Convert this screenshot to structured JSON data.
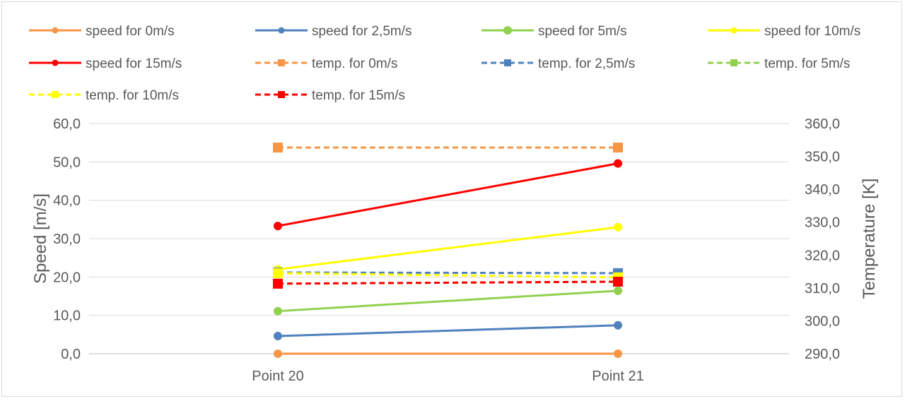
{
  "chart_data": {
    "type": "line",
    "categories": [
      "Point 20",
      "Point 21"
    ],
    "ylabel": "Speed [m/s]",
    "y2label": "Temperature [K]",
    "ylim": [
      0,
      60
    ],
    "y2lim": [
      290,
      360
    ],
    "yticks": [
      "0,0",
      "10,0",
      "20,0",
      "30,0",
      "40,0",
      "50,0",
      "60,0"
    ],
    "y2ticks": [
      "290,0",
      "300,0",
      "310,0",
      "320,0",
      "330,0",
      "340,0",
      "350,0",
      "360,0"
    ],
    "grid": true,
    "legend_position": "top",
    "series": [
      {
        "name": "speed for 0m/s",
        "axis": "left",
        "color": "#F79646",
        "style": "solid",
        "marker": "circle",
        "values": [
          0,
          0
        ]
      },
      {
        "name": "speed for 2,5m/s",
        "axis": "left",
        "color": "#4F81BD",
        "style": "solid",
        "marker": "circle",
        "values": [
          4.6,
          7.4
        ]
      },
      {
        "name": "speed for 5m/s",
        "axis": "left",
        "color": "#92D050",
        "style": "solid",
        "marker": "circle",
        "values": [
          11.1,
          16.4
        ]
      },
      {
        "name": "speed for 10m/s",
        "axis": "left",
        "color": "#FFFF00",
        "style": "solid",
        "marker": "circle",
        "values": [
          22.0,
          33.0
        ]
      },
      {
        "name": "speed for 15m/s",
        "axis": "left",
        "color": "#FF0000",
        "style": "solid",
        "marker": "circle",
        "values": [
          33.3,
          49.6
        ]
      },
      {
        "name": "temp. for 0m/s",
        "axis": "right",
        "color": "#F79646",
        "style": "dashed",
        "marker": "square",
        "values": [
          352.7,
          352.7
        ]
      },
      {
        "name": "temp. for 2,5m/s",
        "axis": "right",
        "color": "#4F81BD",
        "style": "dashed",
        "marker": "square",
        "values": [
          314.7,
          314.5
        ]
      },
      {
        "name": "temp. for 5m/s",
        "axis": "right",
        "color": "#92D050",
        "style": "dashed",
        "marker": "square",
        "values": [
          311.3,
          311.9
        ]
      },
      {
        "name": "temp. for 10m/s",
        "axis": "right",
        "color": "#FFFF00",
        "style": "dashed",
        "marker": "square",
        "values": [
          314.5,
          313.2
        ]
      },
      {
        "name": "temp. for 15m/s",
        "axis": "right",
        "color": "#FF0000",
        "style": "dashed",
        "marker": "square",
        "values": [
          311.3,
          311.9
        ]
      }
    ]
  }
}
